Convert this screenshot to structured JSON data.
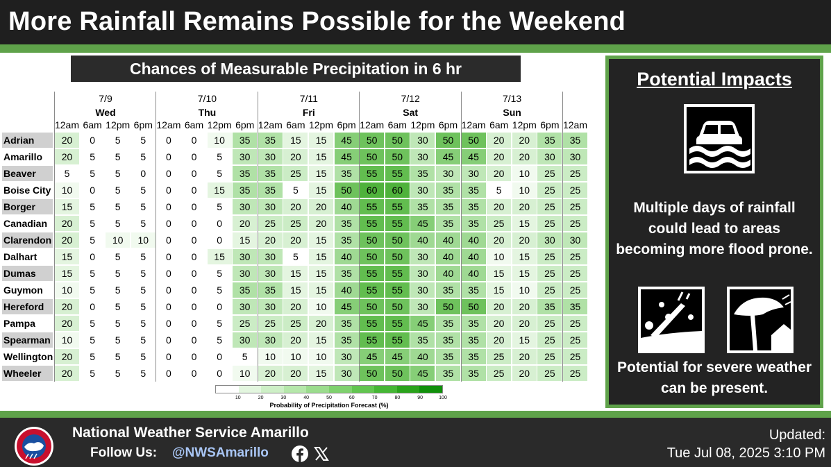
{
  "header": {
    "title": "More Rainfall Remains Possible for the Weekend"
  },
  "chart_title": "Chances of Measurable Precipitation in 6 hr",
  "chart_data": {
    "type": "heatmap",
    "title": "Chances of Measurable Precipitation in 6 hr",
    "days": [
      {
        "date": "7/9",
        "day": "Wed"
      },
      {
        "date": "7/10",
        "day": "Thu"
      },
      {
        "date": "7/11",
        "day": "Fri"
      },
      {
        "date": "7/12",
        "day": "Sat"
      },
      {
        "date": "7/13",
        "day": "Sun"
      }
    ],
    "times": [
      "12am",
      "6am",
      "12pm",
      "6pm",
      "12am",
      "6am",
      "12pm",
      "6pm",
      "12am",
      "6am",
      "12pm",
      "6pm",
      "12am",
      "6am",
      "12pm",
      "6pm",
      "12am",
      "6am",
      "12pm",
      "6pm",
      "12am"
    ],
    "rows": [
      "Adrian",
      "Amarillo",
      "Beaver",
      "Boise City",
      "Borger",
      "Canadian",
      "Clarendon",
      "Dalhart",
      "Dumas",
      "Guymon",
      "Hereford",
      "Pampa",
      "Spearman",
      "Wellington",
      "Wheeler"
    ],
    "values": [
      [
        20,
        0,
        5,
        5,
        0,
        0,
        10,
        35,
        35,
        15,
        15,
        45,
        50,
        50,
        30,
        50,
        50,
        20,
        20,
        35,
        35
      ],
      [
        20,
        5,
        5,
        5,
        0,
        0,
        5,
        30,
        30,
        20,
        15,
        45,
        50,
        50,
        30,
        45,
        45,
        20,
        20,
        30,
        30
      ],
      [
        5,
        5,
        5,
        0,
        0,
        0,
        5,
        35,
        35,
        25,
        15,
        35,
        55,
        55,
        35,
        30,
        30,
        20,
        10,
        25,
        25
      ],
      [
        10,
        0,
        5,
        5,
        0,
        0,
        15,
        35,
        35,
        5,
        15,
        50,
        60,
        60,
        30,
        35,
        35,
        5,
        10,
        25,
        25
      ],
      [
        15,
        5,
        5,
        5,
        0,
        0,
        5,
        30,
        30,
        20,
        20,
        40,
        55,
        55,
        35,
        35,
        35,
        20,
        20,
        25,
        25
      ],
      [
        20,
        5,
        5,
        5,
        0,
        0,
        0,
        20,
        25,
        25,
        20,
        35,
        55,
        55,
        45,
        35,
        35,
        25,
        15,
        25,
        25
      ],
      [
        20,
        5,
        10,
        10,
        0,
        0,
        0,
        15,
        20,
        20,
        15,
        35,
        50,
        50,
        40,
        40,
        40,
        20,
        20,
        30,
        30
      ],
      [
        15,
        0,
        5,
        5,
        0,
        0,
        15,
        30,
        30,
        5,
        15,
        40,
        50,
        50,
        30,
        40,
        40,
        10,
        15,
        25,
        25
      ],
      [
        15,
        5,
        5,
        5,
        0,
        0,
        5,
        30,
        30,
        15,
        15,
        35,
        55,
        55,
        30,
        40,
        40,
        15,
        15,
        25,
        25
      ],
      [
        10,
        5,
        5,
        5,
        0,
        0,
        5,
        35,
        35,
        15,
        15,
        40,
        55,
        55,
        30,
        35,
        35,
        15,
        10,
        25,
        25
      ],
      [
        20,
        0,
        5,
        5,
        0,
        0,
        0,
        30,
        30,
        20,
        10,
        45,
        50,
        50,
        30,
        50,
        50,
        20,
        20,
        35,
        35
      ],
      [
        20,
        5,
        5,
        5,
        0,
        0,
        5,
        25,
        25,
        25,
        20,
        35,
        55,
        55,
        45,
        35,
        35,
        20,
        20,
        25,
        25
      ],
      [
        10,
        5,
        5,
        5,
        0,
        0,
        5,
        30,
        30,
        20,
        15,
        35,
        55,
        55,
        35,
        35,
        35,
        20,
        15,
        25,
        25
      ],
      [
        20,
        5,
        5,
        5,
        0,
        0,
        0,
        5,
        10,
        10,
        10,
        30,
        45,
        45,
        40,
        35,
        35,
        25,
        20,
        25,
        25
      ],
      [
        20,
        5,
        5,
        5,
        0,
        0,
        0,
        10,
        20,
        20,
        15,
        30,
        50,
        50,
        45,
        35,
        35,
        25,
        20,
        25,
        25
      ]
    ],
    "legend": {
      "ticks": [
        "10",
        "20",
        "30",
        "40",
        "50",
        "60",
        "70",
        "80",
        "90",
        "100"
      ],
      "title": "Probability of Precipitation Forecast (%)",
      "colors": [
        "#ffffff",
        "#e3f6df",
        "#cdefc6",
        "#b5e7aa",
        "#9bdc8d",
        "#7fd16e",
        "#62c550",
        "#45b634",
        "#2aa31b",
        "#10900a"
      ]
    }
  },
  "impacts": {
    "title": "Potential Impacts",
    "flood_icon": "flooded-car-icon",
    "text1": "Multiple days of rainfall could lead to areas becoming more flood prone.",
    "hail_icon": "hail-icon",
    "wind_icon": "wind-tree-icon",
    "text2": "Potential for severe weather can be present."
  },
  "footer": {
    "office": "National Weather Service Amarillo",
    "follow": "Follow Us:",
    "handle": "@NWSAmarillo",
    "updated_label": "Updated:",
    "updated_time": "Tue Jul 08, 2025 3:10 PM",
    "logo_text": "NATIONAL WEATHER SERVICE"
  },
  "colors": {
    "accent_green": "#5fa24a",
    "dark_bg": "#232323"
  }
}
